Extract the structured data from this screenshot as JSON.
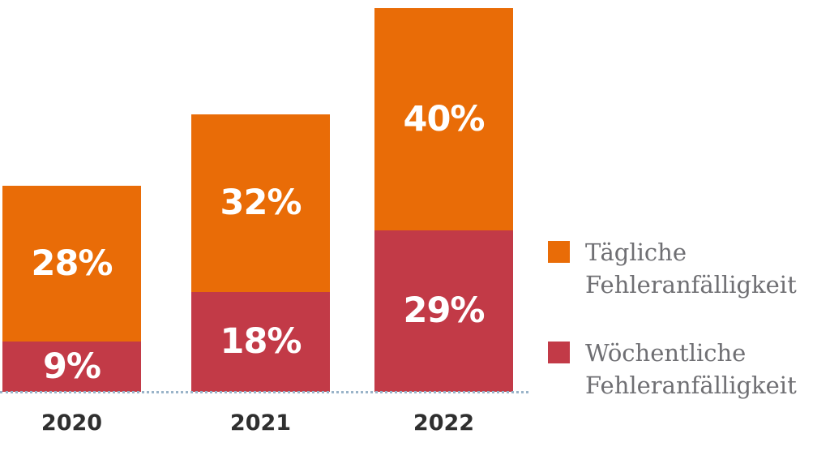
{
  "chart_data": {
    "type": "bar",
    "stacked": true,
    "categories": [
      "2020",
      "2021",
      "2022"
    ],
    "series": [
      {
        "name": "Wöchentliche Fehleranfälligkeit",
        "color": "#c23a47",
        "values": [
          9,
          18,
          29
        ],
        "labels": [
          "9%",
          "18%",
          "29%"
        ]
      },
      {
        "name": "Tägliche Fehleranfälligkeit",
        "color": "#e96c07",
        "values": [
          28,
          32,
          40
        ],
        "labels": [
          "28%",
          "32%",
          "40%"
        ]
      }
    ],
    "value_unit": "%",
    "ylim": [
      0,
      69
    ],
    "grid": false,
    "legend_position": "right",
    "baseline_style": "dotted",
    "baseline_color": "#9ab4c9",
    "bar_label_color": "#ffffff",
    "category_label_color": "#2f2f2f"
  },
  "legend": {
    "text_color": "#6f6f73",
    "items": [
      {
        "name": "Tägliche Fehleranfälligkeit",
        "swatch_color": "#e96c07",
        "lines": [
          "Tägliche",
          "Fehleranfälligkeit"
        ]
      },
      {
        "name": "Wöchentliche Fehleranfälligkeit",
        "swatch_color": "#c23a47",
        "lines": [
          "Wöchentliche",
          "Fehleranfälligkeit"
        ]
      }
    ]
  }
}
